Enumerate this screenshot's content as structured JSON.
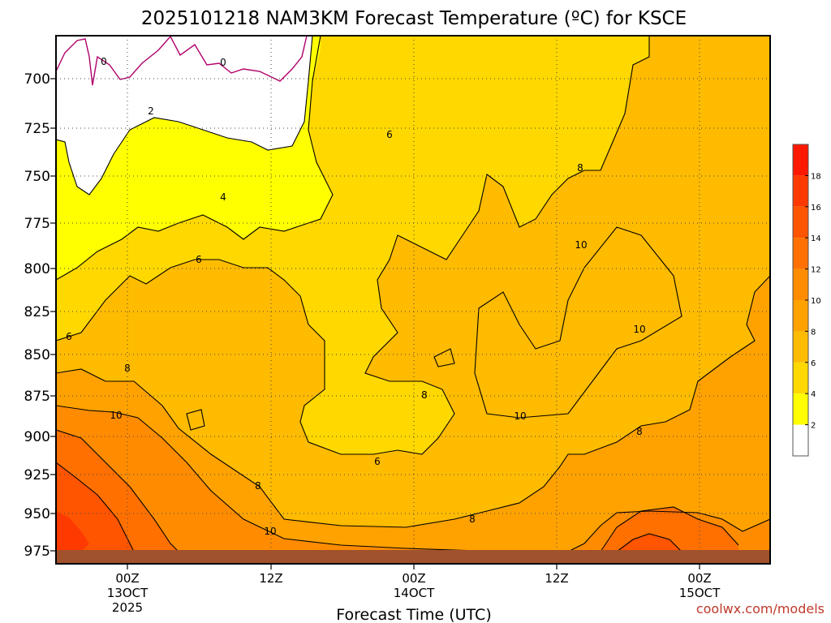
{
  "chart_data": {
    "type": "heatmap",
    "title": "2025101218 NAM3KM Forecast Temperature (ºC) for KSCE",
    "xlabel": "Forecast Time (UTC)",
    "credit": "coolwx.com/models",
    "y_axis": {
      "ticks": [
        "700",
        "725",
        "750",
        "775",
        "800",
        "825",
        "850",
        "875",
        "900",
        "925",
        "950",
        "975"
      ],
      "range": [
        678,
        980
      ],
      "direction": "pressure decreasing upward"
    },
    "x_axis": {
      "ticks": [
        {
          "line1": "00Z",
          "line2": "13OCT",
          "line3": "2025"
        },
        {
          "line1": "12Z",
          "line2": "",
          "line3": ""
        },
        {
          "line1": "00Z",
          "line2": "14OCT",
          "line3": ""
        },
        {
          "line1": "12Z",
          "line2": "",
          "line3": ""
        },
        {
          "line1": "00Z",
          "line2": "15OCT",
          "line3": ""
        }
      ]
    },
    "colorbar": {
      "labels": [
        "2",
        "4",
        "6",
        "8",
        "10",
        "12",
        "14",
        "16",
        "18"
      ],
      "colors": [
        "#ffffff",
        "#ffff00",
        "#ffd800",
        "#ffbb00",
        "#ffa200",
        "#ff8c00",
        "#ff7000",
        "#ff5400",
        "#ff3a00",
        "#ff1800"
      ]
    },
    "contour_labels": [
      "0",
      "0",
      "2",
      "4",
      "6",
      "6",
      "6",
      "8",
      "8",
      "8",
      "8",
      "8",
      "10",
      "10",
      "10",
      "10",
      "10",
      "6",
      "8"
    ],
    "ground_color": "#a0522d",
    "grid": "dotted"
  }
}
